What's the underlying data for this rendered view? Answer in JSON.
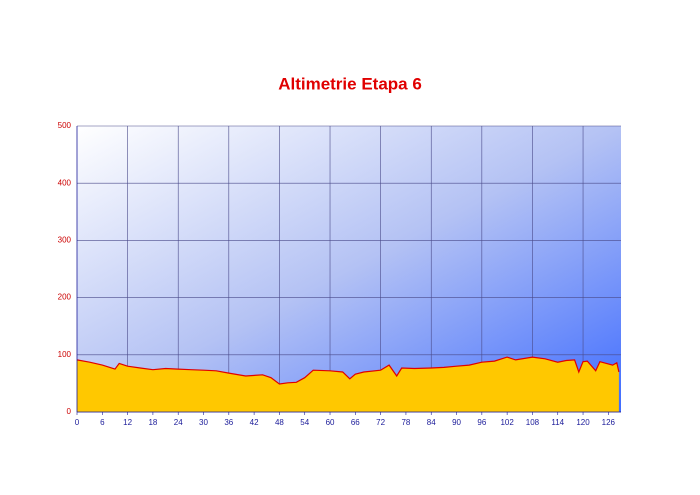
{
  "chart_data": {
    "type": "area",
    "title": "Altimetrie Etapa 6",
    "x": [
      0,
      3,
      6,
      9,
      10,
      12,
      15,
      18,
      21,
      24,
      27,
      30,
      33,
      36,
      40,
      44,
      46,
      48,
      50,
      52,
      54,
      56,
      60,
      63,
      64.7,
      66,
      68,
      72,
      74,
      75.8,
      77,
      80,
      84,
      87,
      90,
      93,
      96,
      99,
      102,
      104,
      108,
      111,
      114,
      116,
      118,
      119,
      120,
      121,
      123,
      124,
      125,
      127,
      128,
      128.5
    ],
    "values": [
      91,
      87,
      82,
      75,
      85,
      80,
      77,
      74,
      76,
      75,
      74,
      73,
      72,
      68,
      63,
      65,
      60,
      49,
      51,
      52,
      60,
      73,
      72,
      70,
      58,
      66,
      70,
      73,
      82,
      63,
      77,
      76,
      77,
      78,
      80,
      82,
      87,
      89,
      96,
      91,
      96,
      93,
      87,
      90,
      91,
      70,
      88,
      89,
      72,
      88,
      86,
      82,
      86,
      70
    ],
    "color": "#ffc800",
    "line_color": "#e00000",
    "xlim": [
      0,
      129
    ],
    "xticks": [
      0,
      6,
      12,
      18,
      24,
      30,
      36,
      42,
      48,
      54,
      60,
      66,
      72,
      78,
      84,
      90,
      96,
      102,
      108,
      114,
      120,
      126
    ],
    "ylim": [
      0,
      500
    ],
    "yticks": [
      0,
      100,
      200,
      300,
      400,
      500
    ],
    "grid": true
  }
}
